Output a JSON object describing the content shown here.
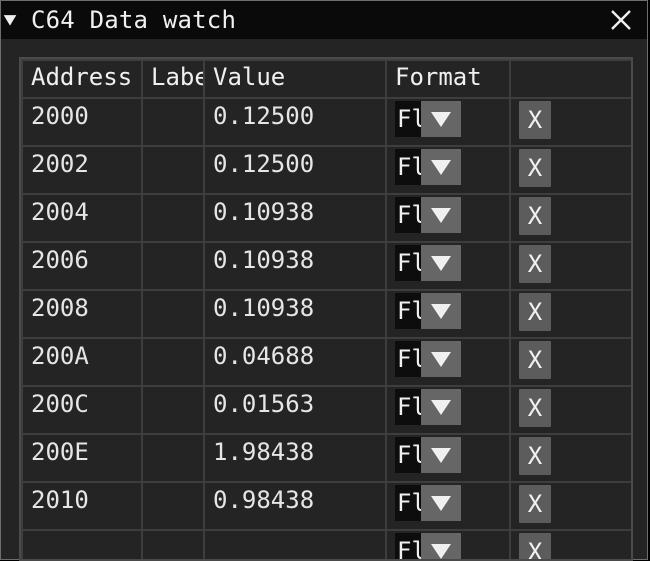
{
  "window": {
    "title": "C64 Data watch"
  },
  "table": {
    "headers": [
      "Address",
      "Label",
      "Value",
      "Format",
      ""
    ],
    "rows": [
      {
        "address": "2000",
        "label": "",
        "value": "0.12500",
        "format": "Float",
        "delete": "X"
      },
      {
        "address": "2002",
        "label": "",
        "value": "0.12500",
        "format": "Float",
        "delete": "X"
      },
      {
        "address": "2004",
        "label": "",
        "value": "0.10938",
        "format": "Float",
        "delete": "X"
      },
      {
        "address": "2006",
        "label": "",
        "value": "0.10938",
        "format": "Float",
        "delete": "X"
      },
      {
        "address": "2008",
        "label": "",
        "value": "0.10938",
        "format": "Float",
        "delete": "X"
      },
      {
        "address": "200A",
        "label": "",
        "value": "0.04688",
        "format": "Float",
        "delete": "X"
      },
      {
        "address": "200C",
        "label": "",
        "value": "0.01563",
        "format": "Float",
        "delete": "X"
      },
      {
        "address": "200E",
        "label": "",
        "value": "1.98438",
        "format": "Float",
        "delete": "X"
      },
      {
        "address": "2010",
        "label": "",
        "value": "0.98438",
        "format": "Float",
        "delete": "X"
      },
      {
        "address": "",
        "label": "",
        "value": "",
        "format": "Float",
        "delete": "X"
      }
    ]
  },
  "icons": {
    "collapse": "triangle-down-icon",
    "close": "close-icon",
    "combo_arrow": "chevron-down-icon"
  },
  "colors": {
    "titlebar_bg": "#0a0a0a",
    "window_bg": "#242424",
    "button_bg": "#5c5c5c",
    "combo_arrow_bg": "#666666"
  }
}
